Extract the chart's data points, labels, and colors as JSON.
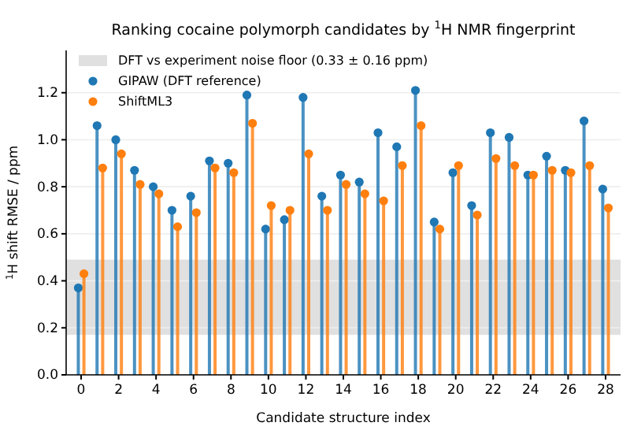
{
  "chart_data": {
    "type": "lollipop",
    "title": "Ranking cocaine polymorph candidates by $^{1}$H NMR fingerprint",
    "xlabel": "Candidate structure index",
    "ylabel": "$^{1}$H shift RMSE / ppm",
    "series": [
      {
        "name": "GIPAW (DFT reference)",
        "color": "#1f77b4",
        "x": [
          -0.15,
          0.85,
          1.85,
          2.85,
          3.85,
          4.85,
          5.85,
          6.85,
          7.85,
          8.85,
          9.85,
          10.85,
          11.85,
          12.85,
          13.85,
          14.85,
          15.85,
          16.85,
          17.85,
          18.85,
          19.85,
          20.85,
          21.85,
          22.85,
          23.85,
          24.85,
          25.85,
          26.85,
          27.85
        ],
        "values": [
          0.37,
          1.06,
          1.0,
          0.87,
          0.8,
          0.7,
          0.76,
          0.91,
          0.9,
          1.19,
          0.62,
          0.66,
          1.18,
          0.76,
          0.85,
          0.82,
          1.03,
          0.97,
          1.21,
          0.65,
          0.86,
          0.72,
          1.03,
          1.01,
          0.85,
          0.93,
          0.87,
          1.08,
          0.79
        ]
      },
      {
        "name": "ShiftML3",
        "color": "#ff7f0e",
        "x": [
          0.15,
          1.15,
          2.15,
          3.15,
          4.15,
          5.15,
          6.15,
          7.15,
          8.15,
          9.15,
          10.15,
          11.15,
          12.15,
          13.15,
          14.15,
          15.15,
          16.15,
          17.15,
          18.15,
          19.15,
          20.15,
          21.15,
          22.15,
          23.15,
          24.15,
          25.15,
          26.15,
          27.15,
          28.15
        ],
        "values": [
          0.43,
          0.88,
          0.94,
          0.81,
          0.77,
          0.63,
          0.69,
          0.88,
          0.86,
          1.07,
          0.72,
          0.7,
          0.94,
          0.7,
          0.81,
          0.77,
          0.74,
          0.89,
          1.06,
          0.62,
          0.89,
          0.68,
          0.92,
          0.89,
          0.85,
          0.87,
          0.86,
          0.89,
          0.71
        ]
      }
    ],
    "bands": [
      {
        "axis": "y",
        "from": 0.17,
        "to": 0.49,
        "label": "DFT vs experiment noise floor (0.33 ± 0.16 ppm)",
        "color": "#e0e0e0"
      }
    ],
    "xlim": [
      -0.8,
      28.8
    ],
    "xticks": [
      0,
      2,
      4,
      6,
      8,
      10,
      12,
      14,
      16,
      18,
      20,
      22,
      24,
      26,
      28
    ],
    "ylim": [
      0,
      1.38
    ],
    "yticks": [
      {
        "value": 0,
        "label": "0.0"
      },
      0.2,
      0.4,
      0.6,
      0.8,
      {
        "value": 1,
        "label": "1.0"
      },
      1.2
    ],
    "grid": "y",
    "legend": "top left",
    "marker": "circle"
  }
}
